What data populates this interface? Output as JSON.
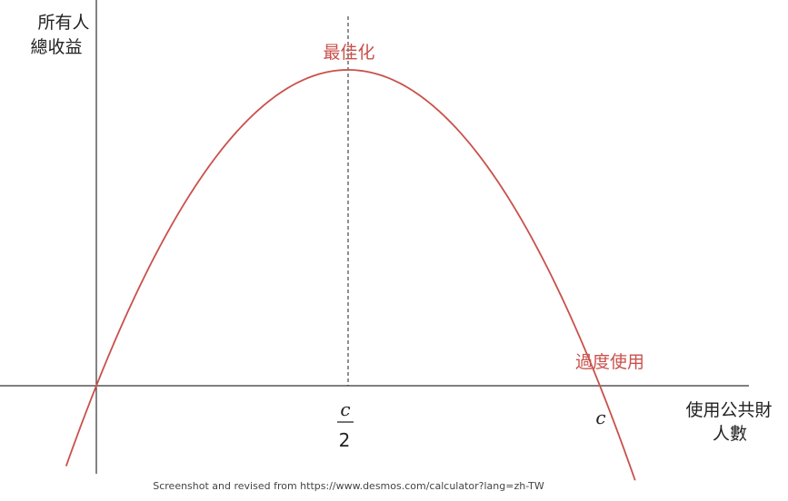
{
  "chart_data": {
    "type": "line",
    "title": "",
    "ylabel_lines": [
      "所有人",
      "總收益"
    ],
    "xlabel_lines": [
      "使用公共財",
      "人數"
    ],
    "series": [
      {
        "equation": "y = x(c - x)",
        "color": "#c9514b"
      }
    ],
    "parameter_c": 2,
    "x_range": [
      -0.14,
      2.88
    ],
    "y_range": [
      -0.28,
      1.21
    ],
    "vertical_marker": {
      "x": 1,
      "style": "dashed",
      "tick_label": {
        "numerator": "c",
        "denominator": "2"
      }
    },
    "root_tick_label": "c",
    "annotations": [
      {
        "text": "最佳化",
        "color": "#c9514b"
      },
      {
        "text": "過度使用",
        "color": "#c9514b"
      }
    ],
    "grid": false,
    "legend": "none"
  },
  "source_note": "Screenshot and revised from https://www.desmos.com/calculator?lang=zh-TW"
}
